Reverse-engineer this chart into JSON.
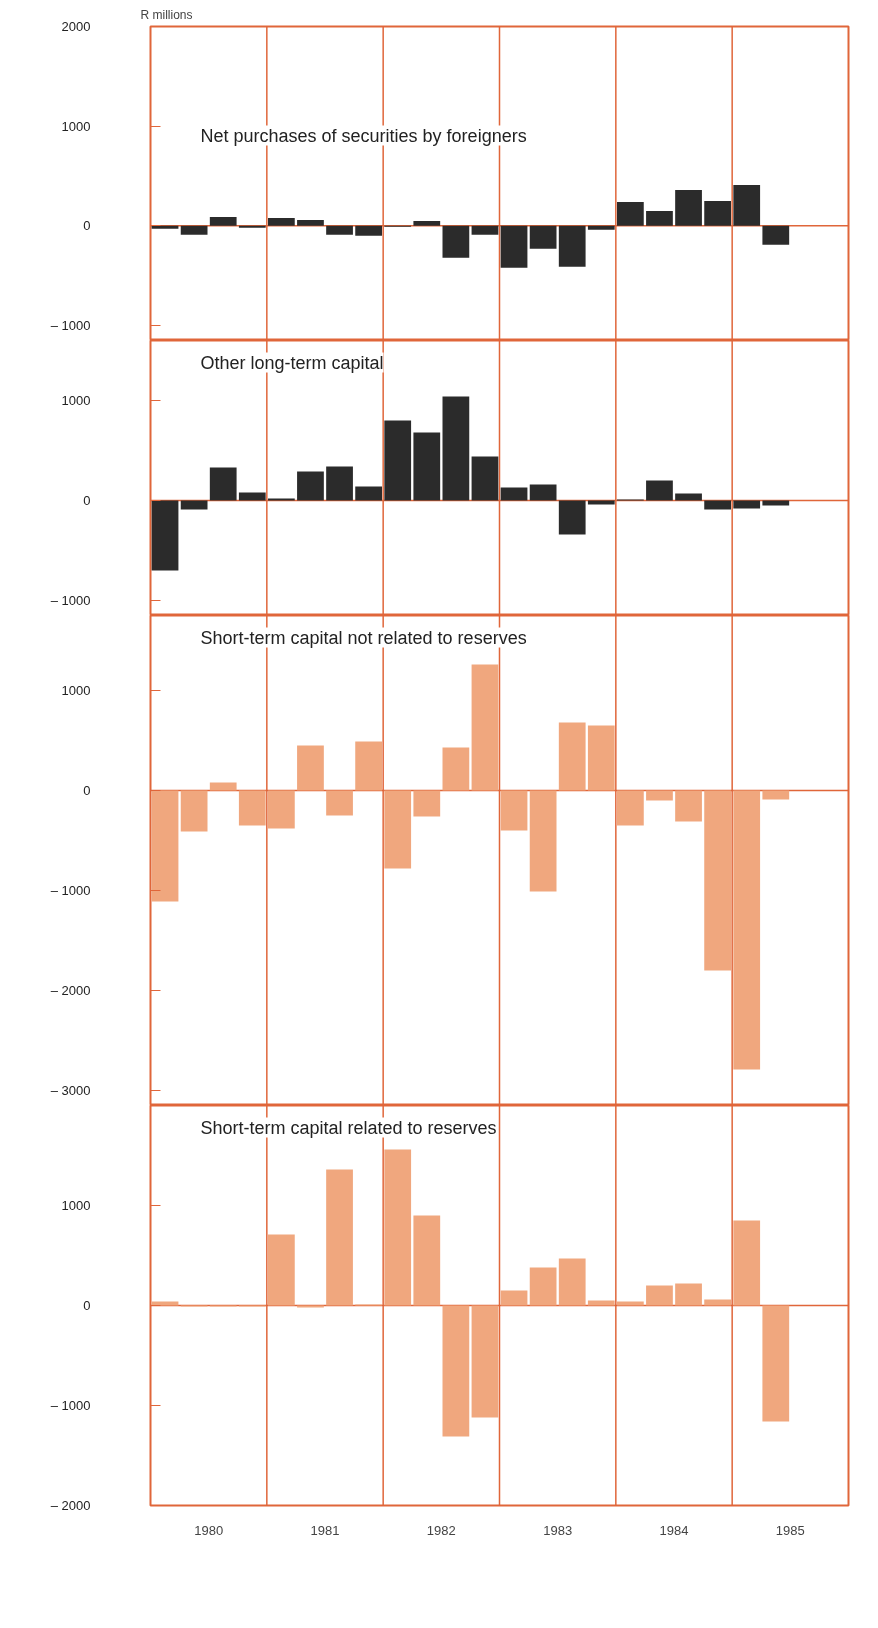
{
  "chart_data": [
    {
      "type": "bar",
      "title": "Net purchases of securities by foreigners",
      "ylabel": "R millions",
      "tick_labels": "y",
      "color": "#2b2b2b",
      "x": [
        1980.125,
        1980.375,
        1980.625,
        1980.875,
        1981.125,
        1981.375,
        1981.625,
        1981.875,
        1982.125,
        1982.375,
        1982.625,
        1982.875,
        1983.125,
        1983.375,
        1983.625,
        1983.875,
        1984.125,
        1984.375,
        1984.625,
        1984.875,
        1985.125,
        1985.375
      ],
      "values": [
        -30,
        -90,
        90,
        -20,
        80,
        60,
        -90,
        -100,
        -10,
        50,
        -320,
        -90,
        -420,
        -230,
        -410,
        -40,
        240,
        150,
        360,
        250,
        410,
        -190
      ],
      "xlim": [
        1980,
        1986
      ],
      "ylim": [
        -1150,
        2000
      ],
      "yticks": [
        {
          "value": -1000,
          "label": "– 1000"
        },
        0,
        1000,
        2000
      ],
      "ref_lines": [
        {
          "axis": "x",
          "value": 1981,
          "color": "#e0663a"
        },
        {
          "axis": "x",
          "value": 1982,
          "color": "#e0663a"
        },
        {
          "axis": "x",
          "value": 1983,
          "color": "#e0663a"
        },
        {
          "axis": "x",
          "value": 1984,
          "color": "#e0663a"
        },
        {
          "axis": "x",
          "value": 1985,
          "color": "#e0663a"
        },
        {
          "axis": "y",
          "value": 0,
          "color": "#e0663a"
        }
      ]
    },
    {
      "type": "bar",
      "title": "Other long-term capital",
      "tick_labels": "y",
      "color": "#2b2b2b",
      "x": [
        1980.125,
        1980.375,
        1980.625,
        1980.875,
        1981.125,
        1981.375,
        1981.625,
        1981.875,
        1982.125,
        1982.375,
        1982.625,
        1982.875,
        1983.125,
        1983.375,
        1983.625,
        1983.875,
        1984.125,
        1984.375,
        1984.625,
        1984.875,
        1985.125,
        1985.375
      ],
      "values": [
        -700,
        -90,
        330,
        80,
        20,
        290,
        340,
        140,
        800,
        680,
        1040,
        440,
        130,
        160,
        -340,
        -40,
        10,
        200,
        70,
        -90,
        -80,
        -50
      ],
      "xlim": [
        1980,
        1986
      ],
      "ylim": [
        -1150,
        1600
      ],
      "yticks": [
        {
          "value": -1000,
          "label": "– 1000"
        },
        0,
        1000
      ],
      "ref_lines": [
        {
          "axis": "x",
          "value": 1981,
          "color": "#e0663a"
        },
        {
          "axis": "x",
          "value": 1982,
          "color": "#e0663a"
        },
        {
          "axis": "x",
          "value": 1983,
          "color": "#e0663a"
        },
        {
          "axis": "x",
          "value": 1984,
          "color": "#e0663a"
        },
        {
          "axis": "x",
          "value": 1985,
          "color": "#e0663a"
        },
        {
          "axis": "y",
          "value": 0,
          "color": "#e0663a"
        }
      ]
    },
    {
      "type": "bar",
      "title": "Short-term capital not related to reserves",
      "tick_labels": "y",
      "color": "#f0a77e",
      "x": [
        1980.125,
        1980.375,
        1980.625,
        1980.875,
        1981.125,
        1981.375,
        1981.625,
        1981.875,
        1982.125,
        1982.375,
        1982.625,
        1982.875,
        1983.125,
        1983.375,
        1983.625,
        1983.875,
        1984.125,
        1984.375,
        1984.625,
        1984.875,
        1985.125,
        1985.375
      ],
      "values": [
        -1110,
        -410,
        80,
        -350,
        -380,
        450,
        -250,
        490,
        -780,
        -260,
        430,
        1260,
        -400,
        -1010,
        680,
        650,
        -350,
        -100,
        -310,
        -1800,
        -2790,
        -90
      ],
      "xlim": [
        1980,
        1986
      ],
      "ylim": [
        -3150,
        1750
      ],
      "yticks": [
        {
          "value": -3000,
          "label": "– 3000"
        },
        {
          "value": -2000,
          "label": "– 2000"
        },
        {
          "value": -1000,
          "label": "– 1000"
        },
        0,
        1000
      ],
      "ref_lines": [
        {
          "axis": "x",
          "value": 1981,
          "color": "#e0663a"
        },
        {
          "axis": "x",
          "value": 1982,
          "color": "#e0663a"
        },
        {
          "axis": "x",
          "value": 1983,
          "color": "#e0663a"
        },
        {
          "axis": "x",
          "value": 1984,
          "color": "#e0663a"
        },
        {
          "axis": "x",
          "value": 1985,
          "color": "#e0663a"
        },
        {
          "axis": "y",
          "value": 0,
          "color": "#e0663a"
        }
      ]
    },
    {
      "type": "bar",
      "title": "Short-term capital related to reserves",
      "color": "#f0a77e",
      "x": [
        1980.125,
        1980.375,
        1980.625,
        1980.875,
        1981.125,
        1981.375,
        1981.625,
        1981.875,
        1982.125,
        1982.375,
        1982.625,
        1982.875,
        1983.125,
        1983.375,
        1983.625,
        1983.875,
        1984.125,
        1984.375,
        1984.625,
        1984.875,
        1985.125,
        1985.375
      ],
      "values": [
        40,
        -10,
        -10,
        -10,
        710,
        -20,
        1360,
        10,
        1560,
        900,
        -1310,
        -1120,
        150,
        380,
        470,
        50,
        40,
        200,
        220,
        60,
        850,
        -1160
      ],
      "xlim": [
        1980,
        1986
      ],
      "ylim": [
        -2000,
        2000
      ],
      "xticks": [
        {
          "value": 1980.5,
          "label": "1980"
        },
        {
          "value": 1981.5,
          "label": "1981"
        },
        {
          "value": 1982.5,
          "label": "1982"
        },
        {
          "value": 1983.5,
          "label": "1983"
        },
        {
          "value": 1984.5,
          "label": "1984"
        },
        {
          "value": 1985.5,
          "label": "1985"
        }
      ],
      "yticks": [
        {
          "value": -2000,
          "label": "– 2000"
        },
        {
          "value": -1000,
          "label": "– 1000"
        },
        0,
        1000
      ],
      "ref_lines": [
        {
          "axis": "x",
          "value": 1981,
          "color": "#e0663a"
        },
        {
          "axis": "x",
          "value": 1982,
          "color": "#e0663a"
        },
        {
          "axis": "x",
          "value": 1983,
          "color": "#e0663a"
        },
        {
          "axis": "x",
          "value": 1984,
          "color": "#e0663a"
        },
        {
          "axis": "x",
          "value": 1985,
          "color": "#e0663a"
        },
        {
          "axis": "y",
          "value": 0,
          "color": "#e0663a"
        }
      ]
    }
  ]
}
